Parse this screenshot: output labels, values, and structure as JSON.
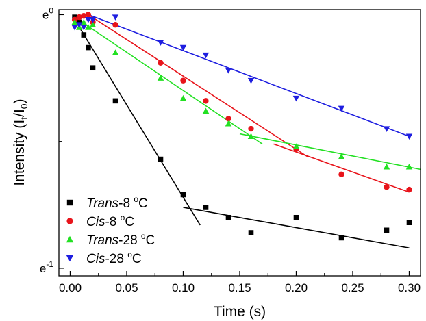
{
  "chart_data": {
    "type": "scatter",
    "xlabel": "Time (s)",
    "ylabel": "Intensity (I_t/I_0)",
    "ylabel_parts": {
      "base": "Intensity (I",
      "sub1": "t",
      "slash": "/I",
      "sub2": "0",
      "close": ")"
    },
    "xlim": [
      -0.01,
      0.31
    ],
    "ylim": [
      -1.03,
      0.02
    ],
    "y_scale": "ln",
    "x_ticks": [
      0.0,
      0.05,
      0.1,
      0.15,
      0.2,
      0.25,
      0.3
    ],
    "x_tick_labels": [
      "0.00",
      "0.05",
      "0.10",
      "0.15",
      "0.20",
      "0.25",
      "0.30"
    ],
    "y_ticks": [
      0,
      -1
    ],
    "y_tick_labels": [
      {
        "base": "e",
        "exp": "0"
      },
      {
        "base": "e",
        "exp": "-1"
      }
    ],
    "grid": false,
    "legend_placement": "bottom-left",
    "series": [
      {
        "name": "Trans-8 °C",
        "name_parts": {
          "italic": "Trans",
          "rest": "-8 ",
          "sup": "o",
          "unit": "C"
        },
        "marker": "square",
        "color": "#000000",
        "x": [
          0.004,
          0.008,
          0.012,
          0.016,
          0.02,
          0.04,
          0.08,
          0.1,
          0.12,
          0.14,
          0.16,
          0.2,
          0.24,
          0.28,
          0.3
        ],
        "y": [
          -0.01,
          -0.03,
          -0.08,
          -0.13,
          -0.21,
          -0.34,
          -0.57,
          -0.71,
          -0.76,
          -0.8,
          -0.86,
          -0.8,
          -0.88,
          -0.85,
          -0.82
        ],
        "fit_lines": [
          {
            "x": [
              0.004,
              0.115
            ],
            "y": [
              -0.02,
              -0.83
            ]
          },
          {
            "x": [
              0.1,
              0.3
            ],
            "y": [
              -0.76,
              -0.92
            ]
          }
        ]
      },
      {
        "name": "Cis-8 °C",
        "name_parts": {
          "italic": "Cis",
          "rest": "-8 ",
          "sup": "o",
          "unit": "C"
        },
        "marker": "circle",
        "color": "#e8141b",
        "x": [
          0.004,
          0.008,
          0.012,
          0.016,
          0.02,
          0.04,
          0.08,
          0.1,
          0.12,
          0.14,
          0.16,
          0.2,
          0.24,
          0.28,
          0.3
        ],
        "y": [
          -0.02,
          -0.01,
          -0.005,
          0.0,
          -0.03,
          -0.04,
          -0.19,
          -0.26,
          -0.34,
          -0.41,
          -0.45,
          -0.53,
          -0.63,
          -0.68,
          -0.69
        ],
        "fit_lines": [
          {
            "x": [
              0.016,
              0.21
            ],
            "y": [
              0.0,
              -0.56
            ]
          },
          {
            "x": [
              0.18,
              0.3
            ],
            "y": [
              -0.51,
              -0.7
            ]
          }
        ]
      },
      {
        "name": "Trans-28 °C",
        "name_parts": {
          "italic": "Trans",
          "rest": "-28 ",
          "sup": "o",
          "unit": "C"
        },
        "marker": "triangle-up",
        "color": "#22e022",
        "x": [
          0.004,
          0.008,
          0.012,
          0.016,
          0.02,
          0.04,
          0.08,
          0.1,
          0.12,
          0.14,
          0.16,
          0.2,
          0.24,
          0.28,
          0.3
        ],
        "y": [
          -0.03,
          -0.05,
          -0.03,
          -0.05,
          -0.04,
          -0.15,
          -0.25,
          -0.33,
          -0.38,
          -0.43,
          -0.48,
          -0.52,
          -0.56,
          -0.6,
          -0.6
        ],
        "fit_lines": [
          {
            "x": [
              0.004,
              0.17
            ],
            "y": [
              -0.01,
              -0.51
            ]
          },
          {
            "x": [
              0.15,
              0.31
            ],
            "y": [
              -0.47,
              -0.61
            ]
          }
        ]
      },
      {
        "name": "Cis-28 °C",
        "name_parts": {
          "italic": "Cis",
          "rest": "-28 ",
          "sup": "o",
          "unit": "C"
        },
        "marker": "triangle-down",
        "color": "#1e1ee0",
        "x": [
          0.004,
          0.008,
          0.012,
          0.016,
          0.02,
          0.04,
          0.08,
          0.1,
          0.12,
          0.14,
          0.16,
          0.2,
          0.24,
          0.28,
          0.3
        ],
        "y": [
          -0.05,
          -0.04,
          -0.05,
          -0.02,
          -0.02,
          -0.01,
          -0.11,
          -0.13,
          -0.16,
          -0.22,
          -0.26,
          -0.33,
          -0.37,
          -0.45,
          -0.48
        ],
        "fit_lines": [
          {
            "x": [
              0.016,
              0.3
            ],
            "y": [
              0.0,
              -0.48
            ]
          }
        ]
      }
    ]
  }
}
